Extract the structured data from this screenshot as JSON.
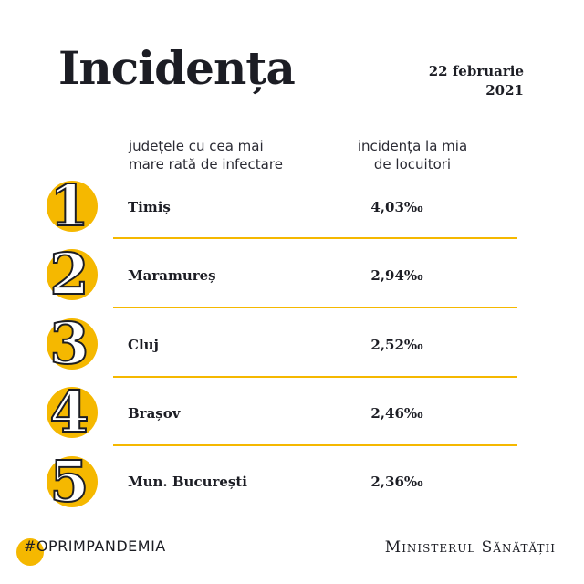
{
  "header": {
    "title": "Incidența",
    "date_line1": "22 februarie",
    "date_line2": "2021"
  },
  "columns": {
    "left_line1": "județele cu cea mai",
    "left_line2": "mare rată de infectare",
    "right_line1": "incidența la mia",
    "right_line2": "de locuitori"
  },
  "rows": [
    {
      "rank": "1",
      "county": "Timiș",
      "value": "4,03‰"
    },
    {
      "rank": "2",
      "county": "Maramureș",
      "value": "2,94‰"
    },
    {
      "rank": "3",
      "county": "Cluj",
      "value": "2,52‰"
    },
    {
      "rank": "4",
      "county": "Brașov",
      "value": "2,46‰"
    },
    {
      "rank": "5",
      "county": "Mun. București",
      "value": "2,36‰"
    }
  ],
  "footer": {
    "hashtag": "#OPRIMPANDEMIA",
    "ministry": "Ministerul Sănătății"
  },
  "colors": {
    "accent": "#f5b800",
    "text": "#1c1d24"
  }
}
